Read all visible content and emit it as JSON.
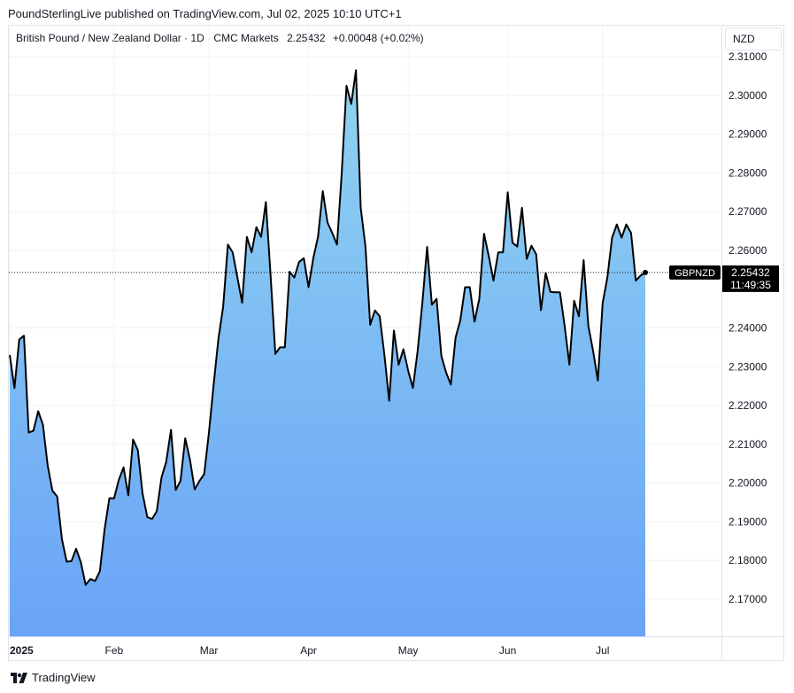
{
  "publisher": "PoundSterlingLive published on TradingView.com, Jul 02, 2025 10:10 UTC+1",
  "header": {
    "instrument": "British Pound / New Zealand Dollar · 1D · CMC Markets",
    "price": "2.25432",
    "change": "+0.00048 (+0.02%)"
  },
  "currency_button": "NZD",
  "footer_brand": "TradingView",
  "colors": {
    "line": "#000000",
    "fill_top": "#8fd3f0",
    "fill_bottom": "#6aa3f7",
    "grid": "#f0f3fa",
    "badge_bg": "#000000"
  },
  "chart_data": {
    "type": "area",
    "series": [
      {
        "name": "GBPNZD",
        "values": [
          2.233,
          2.2245,
          2.237,
          2.238,
          2.213,
          2.2135,
          2.2185,
          2.215,
          2.2045,
          2.198,
          2.1965,
          2.1855,
          2.1797,
          2.1798,
          2.183,
          2.1795,
          2.1737,
          2.1752,
          2.1747,
          2.1772,
          2.188,
          2.196,
          2.196,
          2.2008,
          2.204,
          2.1968,
          2.2112,
          2.2085,
          2.1973,
          2.1912,
          2.1907,
          2.1927,
          2.2014,
          2.2055,
          2.2137,
          2.1982,
          2.2005,
          2.2115,
          2.206,
          2.1983,
          2.2005,
          2.2023,
          2.213,
          2.2255,
          2.2372,
          2.2455,
          2.2615,
          2.2595,
          2.253,
          2.2465,
          2.2635,
          2.2595,
          2.266,
          2.2635,
          2.2725,
          2.2535,
          2.2333,
          2.235,
          2.235,
          2.2545,
          2.253,
          2.257,
          2.258,
          2.2505,
          2.258,
          2.2635,
          2.2753,
          2.2672,
          2.2645,
          2.2615,
          2.28,
          2.3025,
          2.2978,
          2.3065,
          2.271,
          2.261,
          2.2408,
          2.2445,
          2.243,
          2.233,
          2.2212,
          2.2393,
          2.2305,
          2.2345,
          2.229,
          2.2245,
          2.234,
          2.2465,
          2.2609,
          2.246,
          2.2475,
          2.2328,
          2.2285,
          2.2254,
          2.2375,
          2.242,
          2.2505,
          2.2505,
          2.2416,
          2.2475,
          2.2643,
          2.2585,
          2.2522,
          2.2595,
          2.2595,
          2.275,
          2.262,
          2.261,
          2.271,
          2.2578,
          2.2612,
          2.259,
          2.2446,
          2.2542,
          2.2493,
          2.2492,
          2.2492,
          2.2405,
          2.2305,
          2.247,
          2.243,
          2.2575,
          2.2405,
          2.234,
          2.2264,
          2.2463,
          2.253,
          2.2633,
          2.2667,
          2.2633,
          2.2667,
          2.2645,
          2.2522,
          2.2535,
          2.2543
        ]
      }
    ],
    "last_value_label": "2.25432",
    "last_time_label": "11:49:35",
    "y_ticks": [
      "2.31000",
      "2.30000",
      "2.29000",
      "2.28000",
      "2.27000",
      "2.26000",
      "2.24000",
      "2.23000",
      "2.22000",
      "2.21000",
      "2.20000",
      "2.19000",
      "2.18000",
      "2.17000"
    ],
    "x_ticks": [
      {
        "label": "2025",
        "index": 0,
        "bold": true
      },
      {
        "label": "Feb",
        "index": 22,
        "bold": false
      },
      {
        "label": "Mar",
        "index": 42,
        "bold": false
      },
      {
        "label": "Apr",
        "index": 63,
        "bold": false
      },
      {
        "label": "May",
        "index": 84,
        "bold": false
      },
      {
        "label": "Jun",
        "index": 105,
        "bold": false
      },
      {
        "label": "Jul",
        "index": 125,
        "bold": false
      }
    ],
    "ylim": [
      2.1604,
      2.318
    ],
    "grid": true,
    "scale": "linear"
  }
}
